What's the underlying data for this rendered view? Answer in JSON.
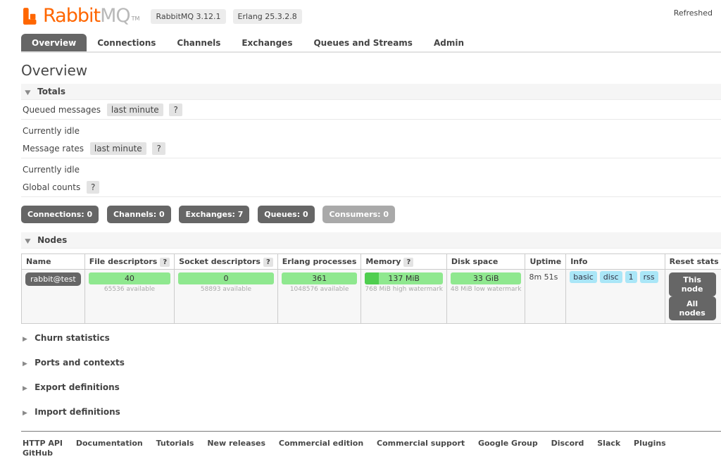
{
  "header": {
    "logo_primary": "Rabbit",
    "logo_secondary": "MQ",
    "logo_tm": "TM",
    "version_badges": [
      "RabbitMQ 3.12.1",
      "Erlang 25.3.2.8"
    ],
    "refreshed_label": "Refreshed"
  },
  "icons": {
    "expanded": "▼",
    "collapsed": "▶",
    "help": "?"
  },
  "nav": {
    "tabs": [
      {
        "label": "Overview",
        "active": true
      },
      {
        "label": "Connections",
        "active": false
      },
      {
        "label": "Channels",
        "active": false
      },
      {
        "label": "Exchanges",
        "active": false
      },
      {
        "label": "Queues and Streams",
        "active": false
      },
      {
        "label": "Admin",
        "active": false
      }
    ]
  },
  "page": {
    "title": "Overview"
  },
  "totals": {
    "section_title": "Totals",
    "queued_messages_label": "Queued messages",
    "queued_messages_range": "last minute",
    "queued_status": "Currently idle",
    "message_rates_label": "Message rates",
    "message_rates_range": "last minute",
    "rates_status": "Currently idle",
    "global_counts_label": "Global counts",
    "count_buttons": [
      {
        "label": "Connections: 0",
        "muted": false
      },
      {
        "label": "Channels: 0",
        "muted": false
      },
      {
        "label": "Exchanges: 7",
        "muted": false
      },
      {
        "label": "Queues: 0",
        "muted": false
      },
      {
        "label": "Consumers: 0",
        "muted": true
      }
    ]
  },
  "nodes": {
    "section_title": "Nodes",
    "columns": [
      {
        "label": "Name"
      },
      {
        "label": "File descriptors",
        "help": "?"
      },
      {
        "label": "Socket descriptors",
        "help": "?"
      },
      {
        "label": "Erlang processes"
      },
      {
        "label": "Memory",
        "help": "?"
      },
      {
        "label": "Disk space"
      },
      {
        "label": "Uptime"
      },
      {
        "label": "Info"
      },
      {
        "label": "Reset stats"
      }
    ],
    "row": {
      "name": "rabbit@test",
      "file_descriptors": {
        "value": "40",
        "sub": "65536 available"
      },
      "socket_descriptors": {
        "value": "0",
        "sub": "58893 available"
      },
      "erlang_processes": {
        "value": "361",
        "sub": "1048576 available"
      },
      "memory": {
        "value": "137 MiB",
        "sub": "768 MiB high watermark",
        "used_pct": 18
      },
      "disk_space": {
        "value": "33 GiB",
        "sub": "48 MiB low watermark"
      },
      "uptime": "8m 51s",
      "info_badges": [
        "basic",
        "disc",
        "1",
        "rss"
      ],
      "reset_buttons": [
        "This node",
        "All nodes"
      ]
    },
    "toggle_label": "+/-"
  },
  "collapsed_sections": [
    {
      "label": "Churn statistics"
    },
    {
      "label": "Ports and contexts"
    },
    {
      "label": "Export definitions"
    },
    {
      "label": "Import definitions"
    }
  ],
  "footer": {
    "links": [
      "HTTP API",
      "Documentation",
      "Tutorials",
      "New releases",
      "Commercial edition",
      "Commercial support",
      "Google Group",
      "Discord",
      "Slack",
      "Plugins",
      "GitHub"
    ]
  },
  "colors": {
    "brand_orange": "#ff6600",
    "active_tab": "#666666",
    "meter_green": "#8fe88f",
    "meter_green_used": "#4fce4f",
    "info_badge_blue": "#aae6f7"
  }
}
